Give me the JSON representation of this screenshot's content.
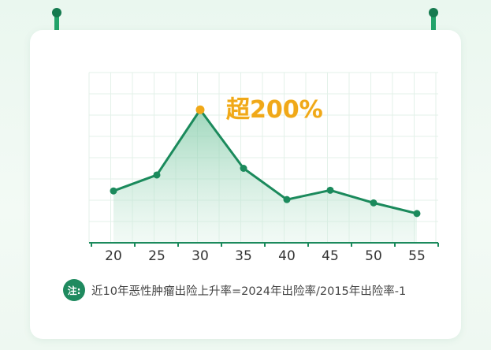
{
  "chart_data": {
    "type": "area",
    "categories": [
      "20",
      "25",
      "30",
      "35",
      "40",
      "45",
      "50",
      "55"
    ],
    "values": [
      78,
      102,
      200,
      112,
      65,
      79,
      60,
      44
    ],
    "ylim": [
      0,
      256
    ],
    "grid": true,
    "highlight": {
      "category": "30",
      "label": "超200%"
    },
    "colors": {
      "line": "#1b8a5c",
      "highlight": "#f0a818",
      "fill": "#9fd8bd",
      "grid": "#e3f1e9"
    }
  },
  "note": {
    "badge": "注:",
    "text": "近10年恶性肿瘤出险上升率=2024年出险率/2015年出险率-1"
  }
}
